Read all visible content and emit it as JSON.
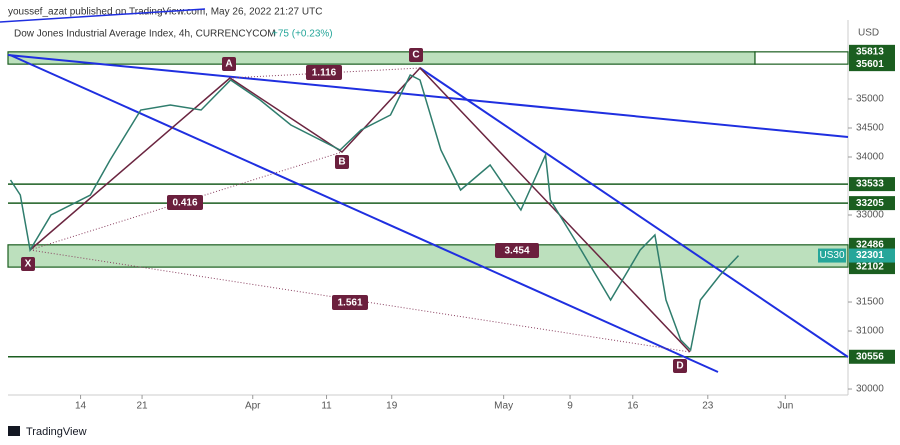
{
  "header": {
    "publisher": "youssef_azat published on TradingView.com, May 26, 2022 21:27 UTC",
    "symbol": "Dow Jones Industrial Average Index, 4h, CURRENCYCOM",
    "change": "+75 (+0.23%)"
  },
  "footer": {
    "brand": "TradingView"
  },
  "chart_data": {
    "type": "line",
    "currency": "USD",
    "color": "#2f7d6d",
    "grid": false,
    "x": [
      -5.7,
      -4.9,
      -4.1,
      -2.4,
      0.8,
      2.4,
      4.9,
      7.3,
      9.8,
      12.2,
      14.6,
      17.1,
      19.5,
      21.1,
      22.8,
      25.2,
      26.8,
      27.6,
      29.3,
      30.9,
      33.3,
      35.8,
      37.8,
      38.2,
      40.7,
      43.1,
      45.5,
      46.7,
      47.6,
      48.8,
      49.6,
      50.4,
      52.0,
      53.5
    ],
    "values": [
      33603,
      33345,
      32397,
      33000,
      33345,
      33948,
      34810,
      34897,
      34810,
      35328,
      34983,
      34552,
      34293,
      34121,
      34466,
      34724,
      35414,
      35328,
      34121,
      33431,
      33862,
      33086,
      34034,
      33259,
      32397,
      31534,
      32397,
      32655,
      31534,
      30845,
      30672,
      31534,
      31966,
      32301
    ],
    "xlim": [
      -5.9,
      62.4
    ],
    "ylim": [
      29897,
      36362
    ],
    "xticks": [
      {
        "value": 0,
        "label": "14"
      },
      {
        "value": 5,
        "label": "21"
      },
      {
        "value": 14,
        "label": "Apr"
      },
      {
        "value": 20,
        "label": "11"
      },
      {
        "value": 25.3,
        "label": "19"
      },
      {
        "value": 34.4,
        "label": "May"
      },
      {
        "value": 39.8,
        "label": "9"
      },
      {
        "value": 44.9,
        "label": "16"
      },
      {
        "value": 51,
        "label": "23"
      },
      {
        "value": 57.3,
        "label": "Jun"
      }
    ],
    "yticks": [
      30000,
      31000,
      31500,
      33000,
      34000,
      34500,
      35000
    ],
    "zones": [
      {
        "top": 35813,
        "bottom": 35601
      },
      {
        "top": 32486,
        "bottom": 32102
      }
    ],
    "levels": [
      33533,
      33205,
      30556
    ],
    "last": {
      "name": "US30",
      "value": 32301
    },
    "pattern": {
      "points": [
        "X",
        "A",
        "B",
        "C",
        "D"
      ],
      "ratios": [
        "1.116",
        "0.416",
        "3.454",
        "1.561"
      ]
    }
  }
}
